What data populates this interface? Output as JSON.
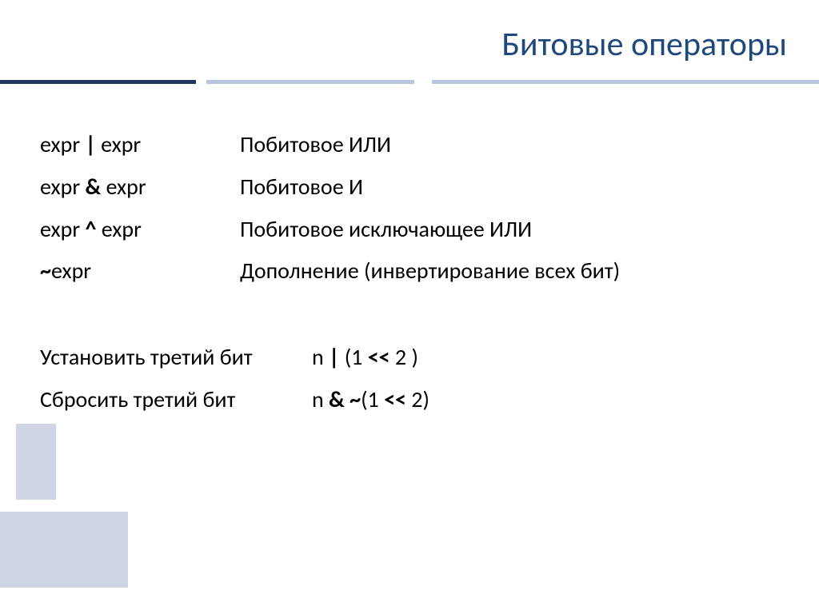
{
  "title": "Битовые операторы",
  "colors": {
    "title_color": "#1f497d",
    "divider_dark": "#1f3864",
    "divider_light": "#b8c5dd",
    "shadow_box": "#d0d5e5",
    "text_color": "#000000",
    "background": "#ffffff"
  },
  "typography": {
    "title_fontsize": 42,
    "body_fontsize": 28,
    "font_family": "Calibri"
  },
  "operators": [
    {
      "expr_left": "expr ",
      "op": "|",
      "expr_right": " expr",
      "description": "Побитовое ИЛИ"
    },
    {
      "expr_left": "expr ",
      "op": "&",
      "expr_right": " expr",
      "description": "Побитовое И"
    },
    {
      "expr_left": "expr ",
      "op": "^",
      "expr_right": " expr",
      "description": "Побитовое исключающее ИЛИ"
    },
    {
      "expr_left": "",
      "op": "~",
      "expr_right": "expr",
      "description": "Дополнение (инвертирование всех бит)"
    }
  ],
  "examples": [
    {
      "action": "Установить третий бит",
      "code_parts": [
        "n ",
        "|",
        " (1 ",
        "<<",
        " 2 )"
      ]
    },
    {
      "action": "Сбросить третий бит",
      "code_parts": [
        "n ",
        "& ~",
        "(1 ",
        "<<",
        " 2)"
      ]
    }
  ]
}
